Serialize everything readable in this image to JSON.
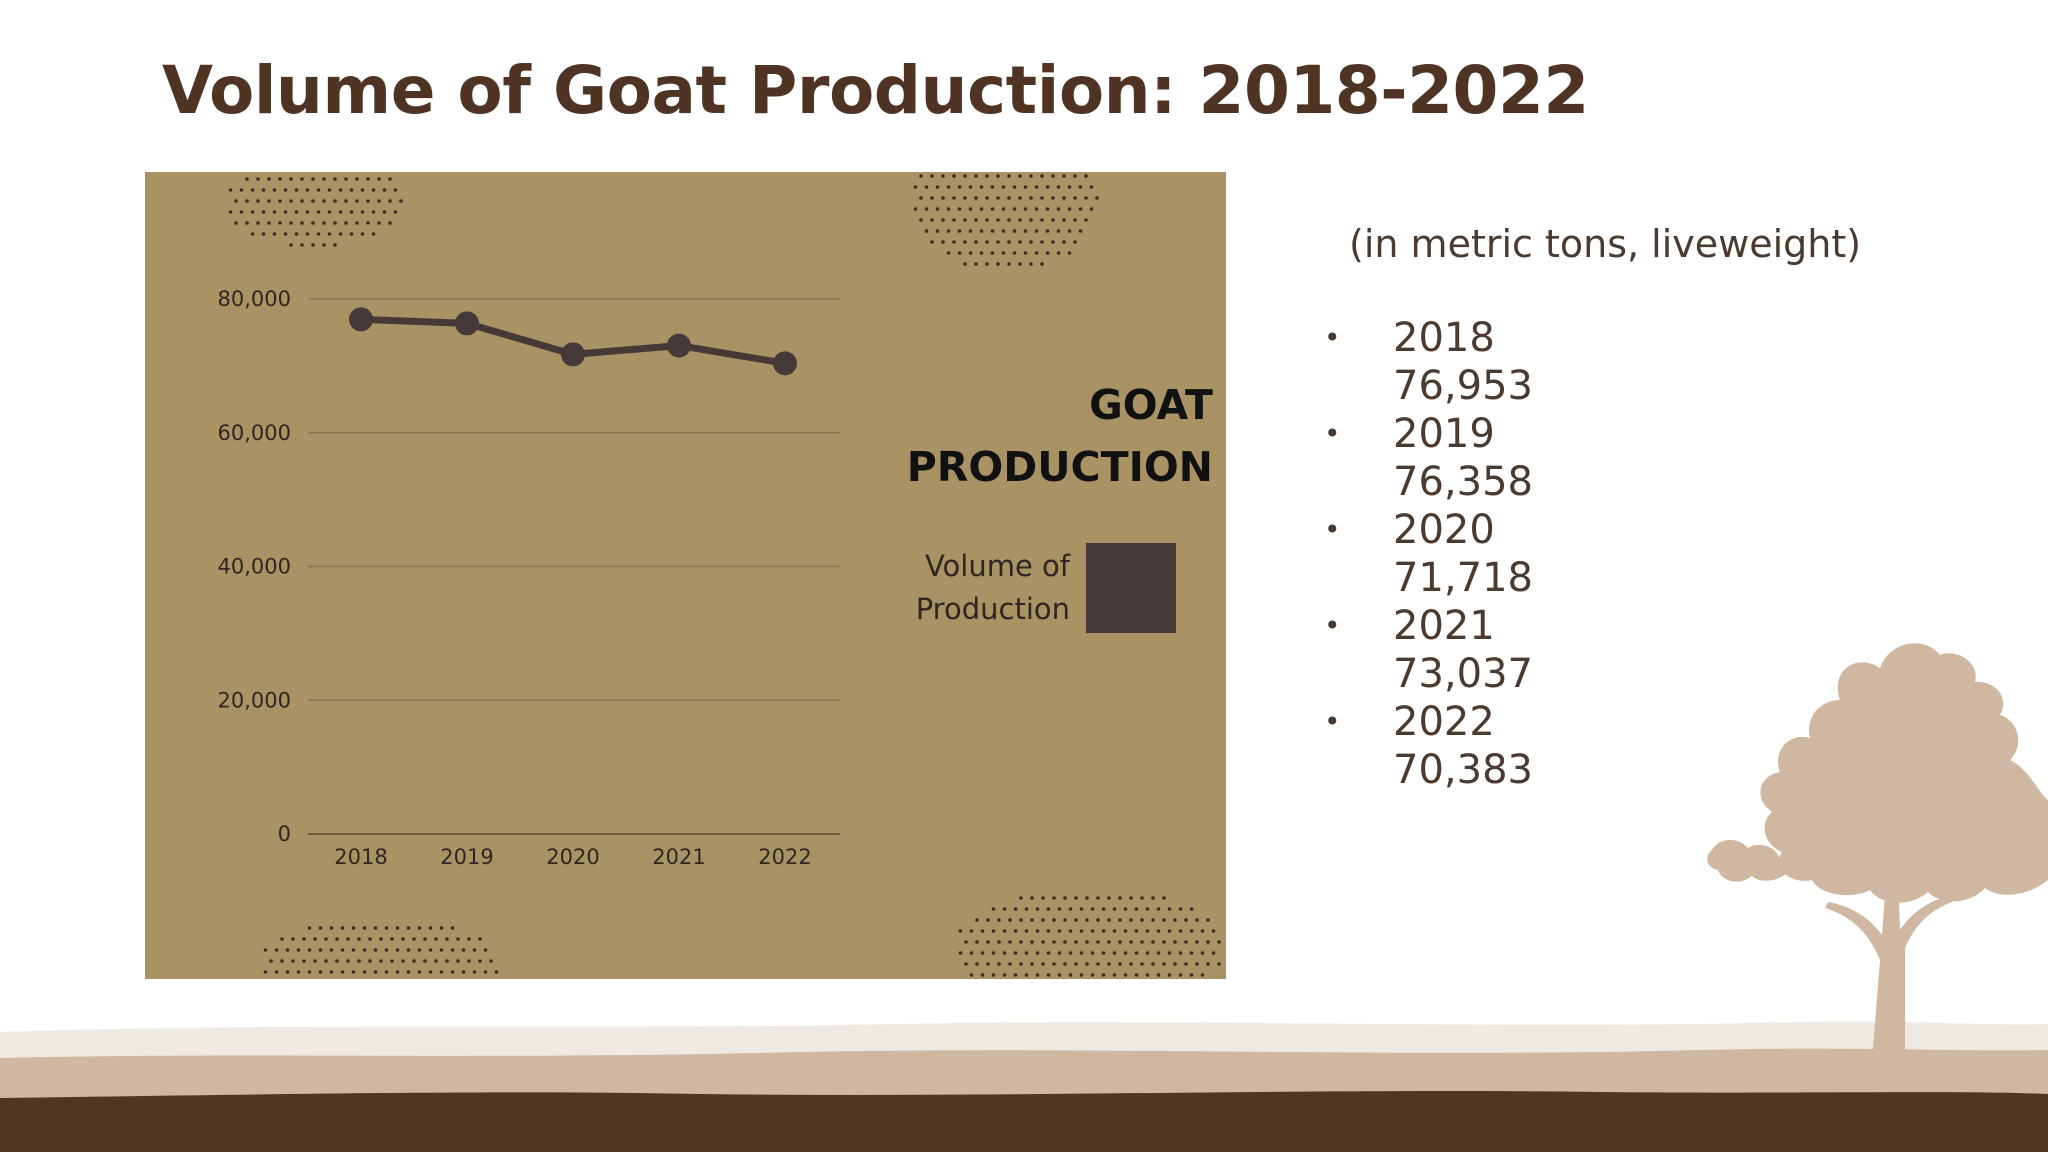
{
  "slide": {
    "title": "Volume of Goat Production: 2018-2022",
    "subtitle": "(in metric tons, liveweight)",
    "items": [
      {
        "year": "2018",
        "value": "76,953"
      },
      {
        "year": "2019",
        "value": "76,358"
      },
      {
        "year": "2020",
        "value": "71,718"
      },
      {
        "year": "2021",
        "value": "73,037"
      },
      {
        "year": "2022",
        "value": "70,383"
      }
    ]
  },
  "chart_data": {
    "type": "line",
    "title": "GOAT PRODUCTION",
    "title_lines": [
      "GOAT",
      "PRODUCTION"
    ],
    "categories": [
      "2018",
      "2019",
      "2020",
      "2021",
      "2022"
    ],
    "series": [
      {
        "name": "Volume of Production",
        "values": [
          76953,
          76358,
          71718,
          73037,
          70383
        ]
      }
    ],
    "legend_label_lines": [
      "Volume of",
      "Production"
    ],
    "ylim": [
      0,
      80000
    ],
    "yticks": [
      0,
      20000,
      40000,
      60000,
      80000
    ],
    "ytick_labels": [
      "0",
      "20,000",
      "40,000",
      "60,000",
      "80,000"
    ],
    "grid": true,
    "legend": "right",
    "colors": {
      "background": "#a99364",
      "line": "#453a37",
      "grid": "#8c7850",
      "legend_swatch": "#453a37"
    }
  }
}
